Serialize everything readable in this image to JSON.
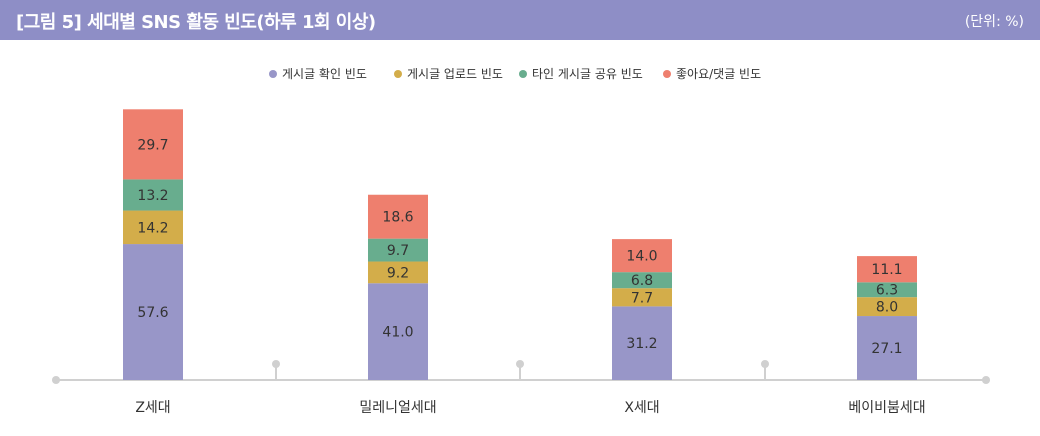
{
  "header": {
    "title": "[그림 5]  세대별 SNS 활동 빈도(하루 1회 이상)",
    "unit": "(단위: %)"
  },
  "colors": {
    "header_bg": "#8e8ec6",
    "axis": "#d0d0d0"
  },
  "chart_data": {
    "type": "bar",
    "stacked": true,
    "categories": [
      "Z세대",
      "밀레니얼세대",
      "X세대",
      "베이비붐세대"
    ],
    "series": [
      {
        "name": "게시글 확인 빈도",
        "color": "#9896c8",
        "values": [
          57.6,
          41.0,
          31.2,
          27.1
        ]
      },
      {
        "name": "게시글 업로드 빈도",
        "color": "#d3ad4a",
        "values": [
          14.2,
          9.2,
          7.7,
          8.0
        ]
      },
      {
        "name": "타인 게시글 공유 빈도",
        "color": "#68ad8e",
        "values": [
          13.2,
          9.7,
          6.8,
          6.3
        ]
      },
      {
        "name": "좋아요/댓글 빈도",
        "color": "#ee7f6e",
        "values": [
          29.7,
          18.6,
          14.0,
          11.1
        ]
      }
    ],
    "legend_position": "top",
    "grid": false
  }
}
